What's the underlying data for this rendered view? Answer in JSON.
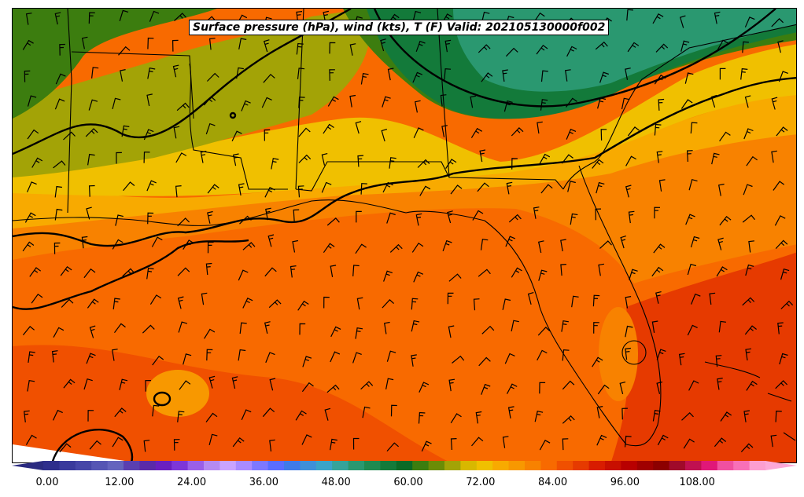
{
  "title": "Surface pressure (hPa), wind (kts), T (F) Valid: 202105130000f002",
  "colorbar": {
    "tick_labels": [
      "0.00",
      "12.00",
      "24.00",
      "36.00",
      "48.00",
      "60.00",
      "72.00",
      "84.00",
      "96.00",
      "108.00"
    ],
    "range": [
      0,
      120
    ],
    "colors": [
      "#2e2e8c",
      "#3a3a9c",
      "#4646a8",
      "#5555b4",
      "#6464be",
      "#5a3fb0",
      "#5a2aa8",
      "#6a1fbf",
      "#7d36d8",
      "#9a5fe8",
      "#b58af2",
      "#c9a3ff",
      "#a98bff",
      "#7d78ff",
      "#5a6dff",
      "#3f7ae8",
      "#3f8fd8",
      "#3ba3c8",
      "#36a39a",
      "#2a9870",
      "#1f8a50",
      "#137a3a",
      "#0a6a26",
      "#3c7d0f",
      "#6b8c06",
      "#a3a306",
      "#d8b800",
      "#f0c000",
      "#f8aa00",
      "#f89800",
      "#f88200",
      "#f86a00",
      "#f05000",
      "#e63a00",
      "#d81c00",
      "#c80f00",
      "#b80000",
      "#a00000",
      "#8c0000",
      "#a00a2a",
      "#c01050",
      "#e01878",
      "#f050a0",
      "#f870b8",
      "#fc9ed0"
    ]
  }
}
